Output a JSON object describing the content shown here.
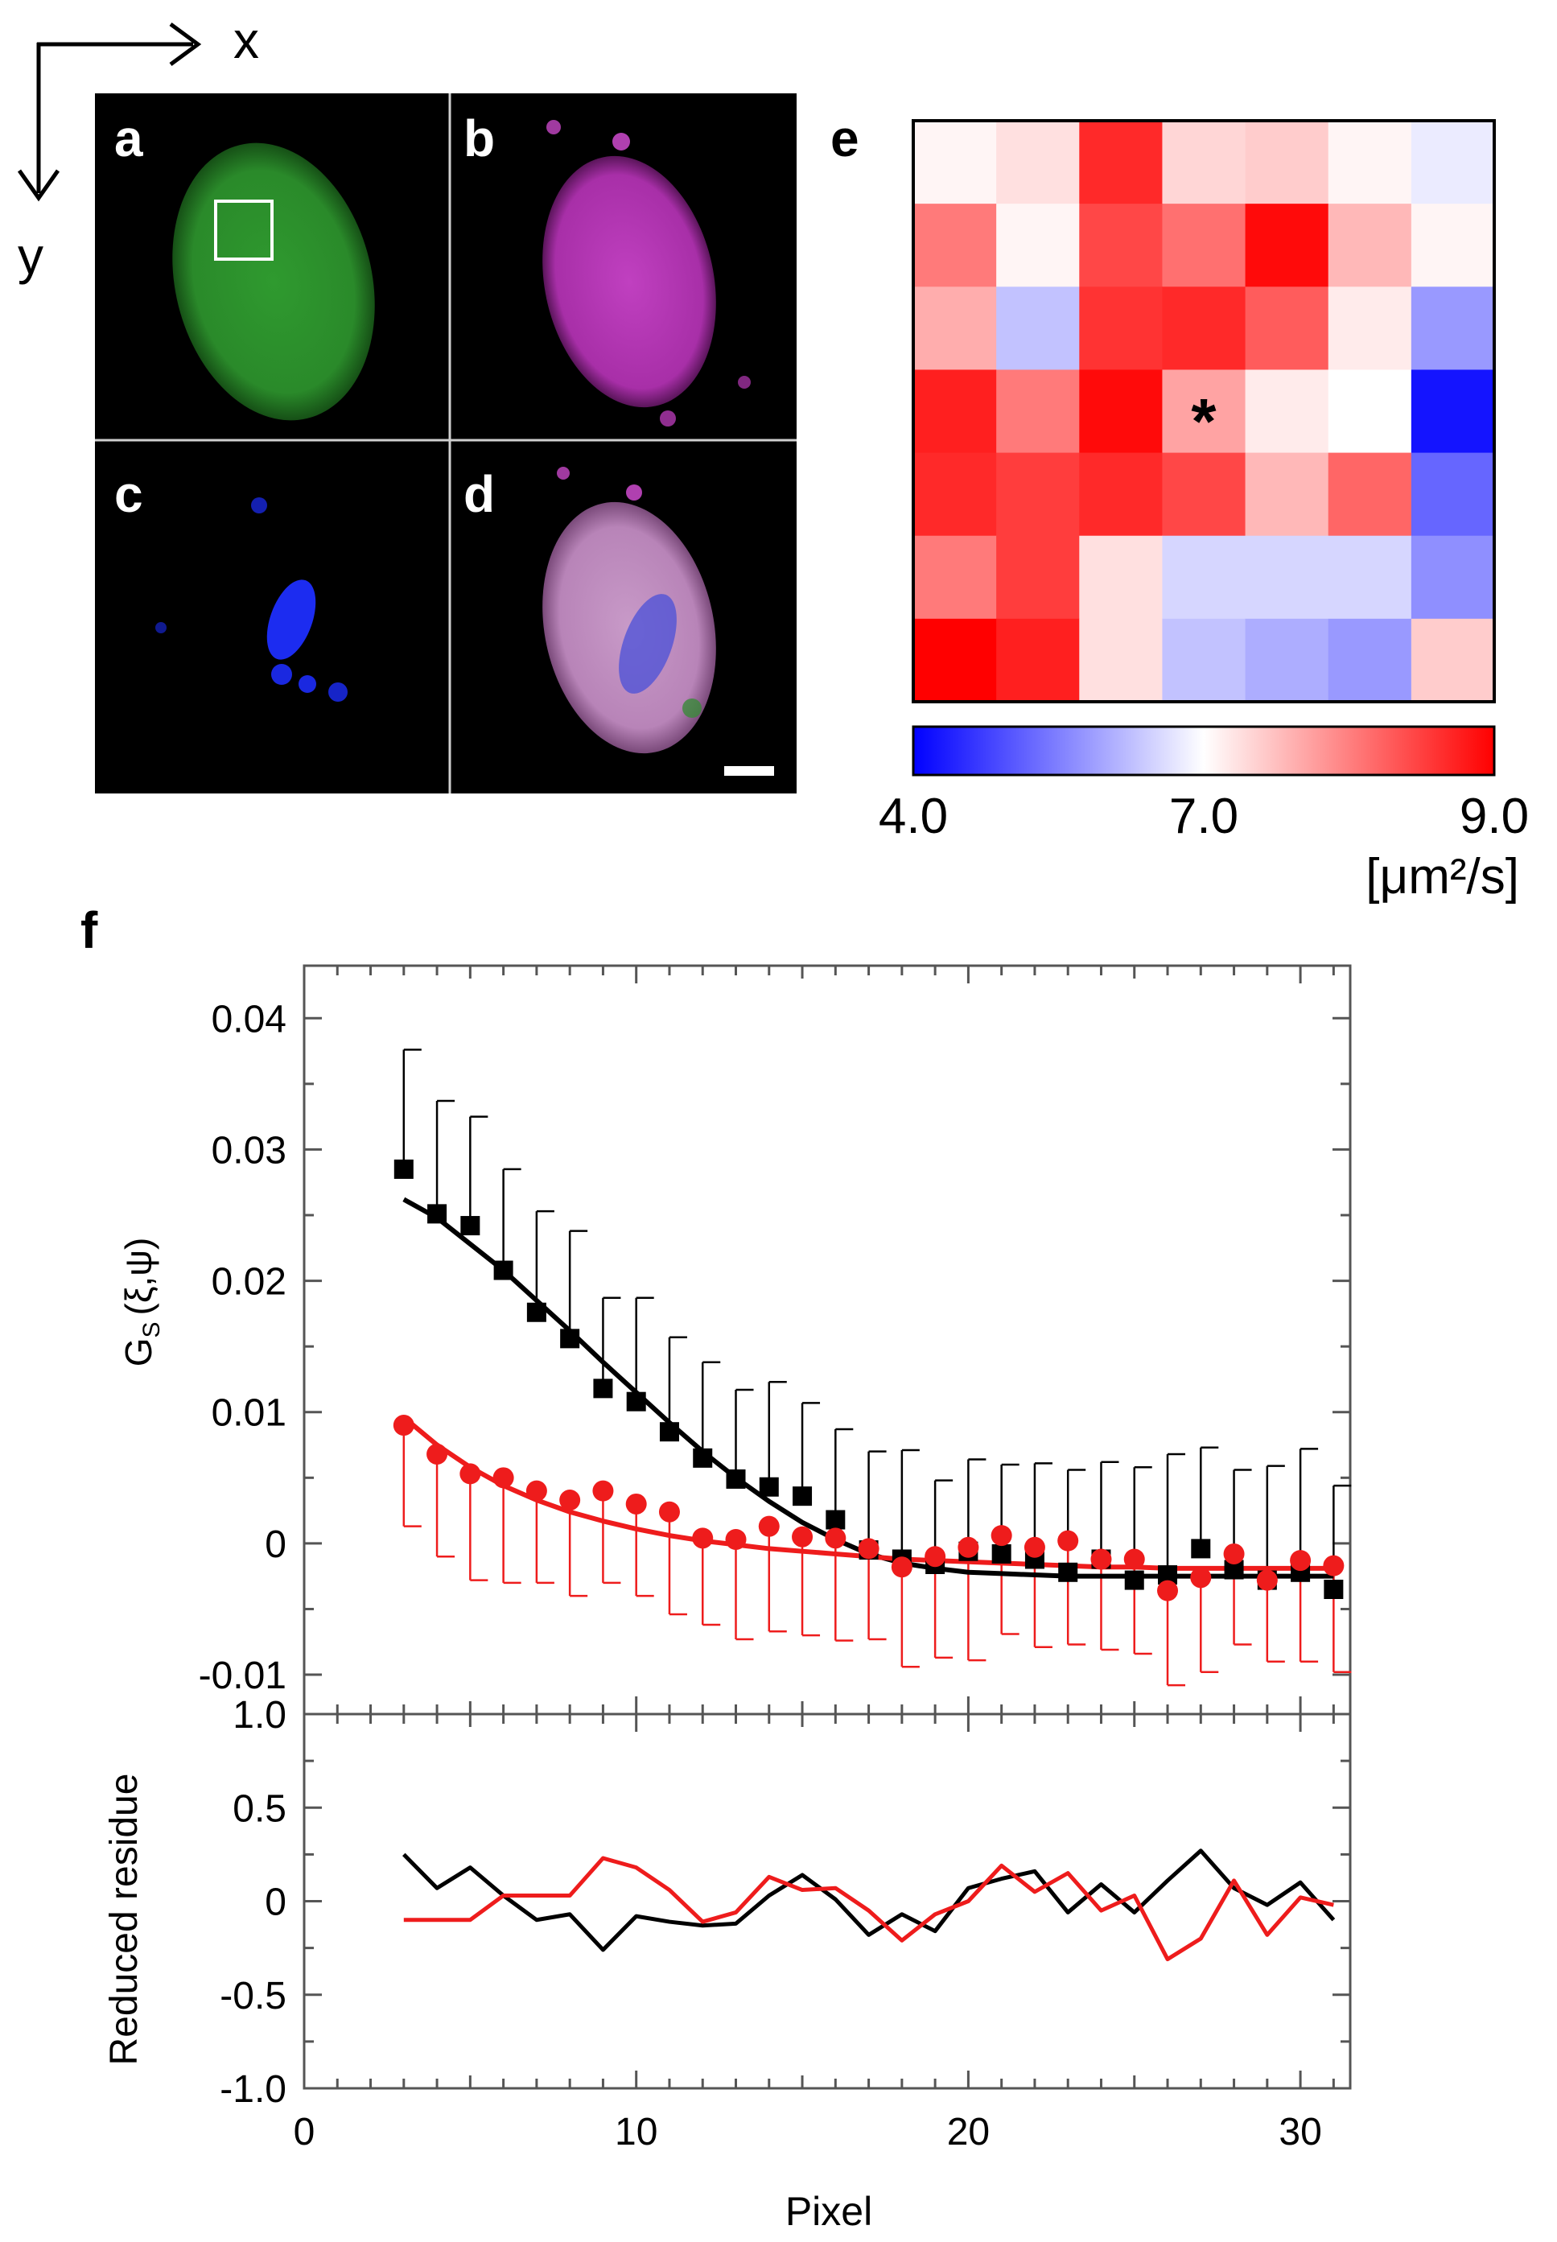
{
  "axes_indicator": {
    "x_label": "x",
    "y_label": "y"
  },
  "micrographs": {
    "panels": [
      {
        "id": "a",
        "label": "a",
        "channel": "green",
        "color": "#2fa82f"
      },
      {
        "id": "b",
        "label": "b",
        "channel": "magenta",
        "color": "#c23fc2"
      },
      {
        "id": "c",
        "label": "c",
        "channel": "blue",
        "color": "#1c2cf0"
      },
      {
        "id": "d",
        "label": "d",
        "channel": "merge",
        "color": "#b889b8"
      }
    ]
  },
  "heatmap": {
    "label": "e",
    "colorbar_min": 4.0,
    "colorbar_mid": 7.0,
    "colorbar_max": 9.0,
    "tick_labels": [
      "4.0",
      "7.0",
      "9.0"
    ],
    "unit_label": "[μm²/s]",
    "marker": "*",
    "marker_cell": [
      3,
      3
    ],
    "values": [
      [
        6.6,
        6.8,
        8.6,
        6.9,
        7.0,
        6.6,
        6.3
      ],
      [
        7.8,
        6.6,
        8.3,
        7.9,
        8.9,
        7.2,
        6.6
      ],
      [
        7.3,
        5.9,
        8.5,
        8.6,
        8.1,
        6.7,
        5.5
      ],
      [
        8.7,
        7.8,
        8.9,
        7.4,
        6.7,
        6.5,
        4.2
      ],
      [
        8.6,
        8.4,
        8.6,
        8.3,
        7.2,
        8.0,
        5.0
      ],
      [
        7.8,
        8.4,
        6.8,
        6.1,
        6.1,
        6.1,
        5.4
      ],
      [
        9.0,
        8.7,
        6.8,
        5.9,
        5.7,
        5.5,
        7.0
      ]
    ],
    "colors": {
      "low": "#0000ff",
      "mid": "#ffffff",
      "high": "#ff0000"
    }
  },
  "chart_data": [
    {
      "type": "scatter",
      "label": "f",
      "ylabel": "G",
      "ylabel_sub": "S",
      "ylabel_args": "(ξ,ψ)",
      "xlim": [
        0,
        31.5
      ],
      "ylim": [
        -0.013,
        0.044
      ],
      "yticks": [
        -0.01,
        0,
        0.01,
        0.02,
        0.03,
        0.04
      ],
      "ytick_labels": [
        "-0.01",
        "0",
        "0.01",
        "0.02",
        "0.03",
        "0.04"
      ],
      "series": [
        {
          "name": "black",
          "color": "#000000",
          "marker": "square",
          "x": [
            3,
            4,
            5,
            6,
            7,
            8,
            9,
            10,
            11,
            12,
            13,
            14,
            15,
            16,
            17,
            18,
            19,
            20,
            21,
            22,
            23,
            24,
            25,
            26,
            27,
            28,
            29,
            30,
            31
          ],
          "y": [
            0.0285,
            0.0251,
            0.0242,
            0.0208,
            0.0176,
            0.0156,
            0.0118,
            0.0108,
            0.0085,
            0.0065,
            0.0049,
            0.0043,
            0.0036,
            0.0018,
            -0.0005,
            -0.0012,
            -0.0016,
            -0.0006,
            -0.0008,
            -0.0012,
            -0.0022,
            -0.0012,
            -0.0028,
            -0.0024,
            -0.0004,
            -0.002,
            -0.0028,
            -0.0022,
            -0.0035
          ],
          "err_up": [
            0.0376,
            0.0337,
            0.0325,
            0.0285,
            0.0253,
            0.0238,
            0.0187,
            0.0187,
            0.0157,
            0.0138,
            0.0117,
            0.0123,
            0.0107,
            0.0087,
            0.007,
            0.0071,
            0.0048,
            0.0064,
            0.006,
            0.0061,
            0.0056,
            0.0062,
            0.0058,
            0.0068,
            0.0073,
            0.0056,
            0.0059,
            0.0072,
            0.0044
          ],
          "fit": [
            0.0262,
            0.0248,
            0.0228,
            0.0208,
            0.0185,
            0.0162,
            0.0138,
            0.0115,
            0.0092,
            0.007,
            0.005,
            0.0032,
            0.0016,
            0.0003,
            -0.0008,
            -0.0015,
            -0.0019,
            -0.0022,
            -0.0023,
            -0.0024,
            -0.0025,
            -0.0025,
            -0.0025,
            -0.0025,
            -0.0025,
            -0.0025,
            -0.0025,
            -0.0025,
            -0.0025
          ]
        },
        {
          "name": "red",
          "color": "#ee1c1c",
          "marker": "circle",
          "x": [
            3,
            4,
            5,
            6,
            7,
            8,
            9,
            10,
            11,
            12,
            13,
            14,
            15,
            16,
            17,
            18,
            19,
            20,
            21,
            22,
            23,
            24,
            25,
            26,
            27,
            28,
            29,
            30,
            31
          ],
          "y": [
            0.009,
            0.0068,
            0.0053,
            0.005,
            0.004,
            0.0033,
            0.004,
            0.003,
            0.0024,
            0.0004,
            0.0003,
            0.0013,
            0.0005,
            0.0004,
            -0.0004,
            -0.0018,
            -0.001,
            -0.0003,
            0.0006,
            -0.0003,
            0.0002,
            -0.0012,
            -0.0012,
            -0.0036,
            -0.0026,
            -0.0008,
            -0.0028,
            -0.0013,
            -0.0017
          ],
          "err_down": [
            0.0013,
            -0.001,
            -0.0028,
            -0.003,
            -0.003,
            -0.004,
            -0.003,
            -0.004,
            -0.0054,
            -0.0062,
            -0.0073,
            -0.0067,
            -0.007,
            -0.0074,
            -0.0073,
            -0.0094,
            -0.0087,
            -0.0089,
            -0.0069,
            -0.0079,
            -0.0077,
            -0.0081,
            -0.0084,
            -0.0108,
            -0.0098,
            -0.0077,
            -0.009,
            -0.009,
            -0.0098
          ],
          "fit": [
            0.0096,
            0.0075,
            0.0058,
            0.0044,
            0.0033,
            0.0024,
            0.0017,
            0.0011,
            0.0006,
            0.0002,
            -0.0001,
            -0.0004,
            -0.0006,
            -0.0008,
            -0.001,
            -0.0012,
            -0.0013,
            -0.0014,
            -0.0015,
            -0.0016,
            -0.0017,
            -0.0018,
            -0.0018,
            -0.0019,
            -0.0019,
            -0.0019,
            -0.0019,
            -0.0019,
            -0.0019
          ]
        }
      ]
    },
    {
      "type": "line",
      "ylabel": "Reduced residue",
      "xlabel": "Pixel",
      "xlim": [
        0,
        31.5
      ],
      "ylim": [
        -1.0,
        1.0
      ],
      "xticks": [
        0,
        10,
        20,
        30
      ],
      "xtick_labels": [
        "0",
        "10",
        "20",
        "30"
      ],
      "yticks": [
        -1.0,
        -0.5,
        0,
        0.5,
        1.0
      ],
      "ytick_labels": [
        "-1.0",
        "-0.5",
        "0",
        "0.5",
        "1.0"
      ],
      "series": [
        {
          "name": "black",
          "color": "#000000",
          "x": [
            3,
            4,
            5,
            6,
            7,
            8,
            9,
            10,
            11,
            12,
            13,
            14,
            15,
            16,
            17,
            18,
            19,
            20,
            21,
            22,
            23,
            24,
            25,
            26,
            27,
            28,
            29,
            30,
            31
          ],
          "y": [
            0.25,
            0.07,
            0.18,
            0.03,
            -0.1,
            -0.07,
            -0.26,
            -0.08,
            -0.11,
            -0.13,
            -0.12,
            0.03,
            0.14,
            0.01,
            -0.18,
            -0.07,
            -0.16,
            0.07,
            0.12,
            0.16,
            -0.06,
            0.09,
            -0.06,
            0.11,
            0.27,
            0.07,
            -0.02,
            0.1,
            -0.1
          ]
        },
        {
          "name": "red",
          "color": "#ee1c1c",
          "x": [
            3,
            4,
            5,
            6,
            7,
            8,
            9,
            10,
            11,
            12,
            13,
            14,
            15,
            16,
            17,
            18,
            19,
            20,
            21,
            22,
            23,
            24,
            25,
            26,
            27,
            28,
            29,
            30,
            31
          ],
          "y": [
            -0.1,
            -0.1,
            -0.1,
            0.03,
            0.03,
            0.03,
            0.23,
            0.18,
            0.06,
            -0.11,
            -0.06,
            0.13,
            0.06,
            0.07,
            -0.05,
            -0.21,
            -0.07,
            0.0,
            0.19,
            0.05,
            0.15,
            -0.05,
            0.03,
            -0.31,
            -0.2,
            0.11,
            -0.18,
            0.02,
            -0.02
          ]
        }
      ]
    }
  ]
}
